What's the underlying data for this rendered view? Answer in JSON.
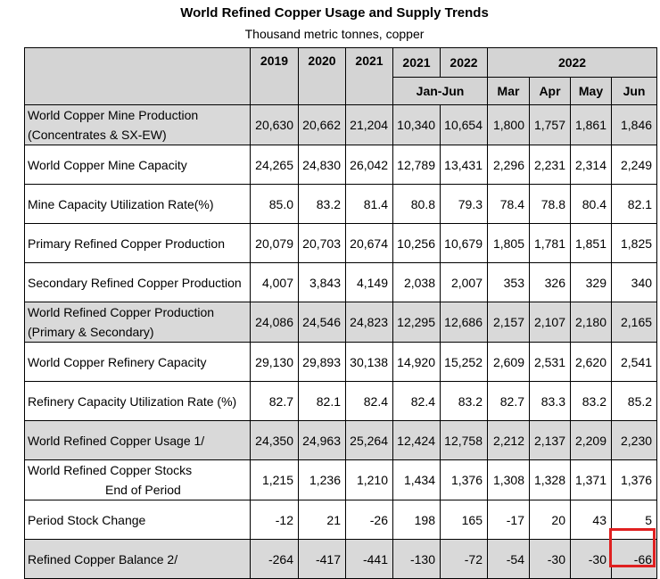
{
  "title": "World Refined Copper Usage and Supply Trends",
  "subtitle": "Thousand metric tonnes, copper",
  "header": {
    "years": [
      "2019",
      "2020",
      "2021",
      "2021",
      "2022"
    ],
    "year_2022_months": "2022",
    "jan_jun": "Jan-Jun",
    "months": [
      "Mar",
      "Apr",
      "May",
      "Jun"
    ]
  },
  "rows": [
    {
      "label": [
        "World Copper Mine Production",
        "(Concentrates & SX-EW)"
      ],
      "values": [
        "20,630",
        "20,662",
        "21,204",
        "10,340",
        "10,654",
        "1,800",
        "1,757",
        "1,861",
        "1,846"
      ],
      "shaded": true
    },
    {
      "label": [
        "World Copper Mine Capacity"
      ],
      "values": [
        "24,265",
        "24,830",
        "26,042",
        "12,789",
        "13,431",
        "2,296",
        "2,231",
        "2,314",
        "2,249"
      ],
      "shaded": false
    },
    {
      "label": [
        "Mine Capacity Utilization Rate(%)"
      ],
      "values": [
        "85.0",
        "83.2",
        "81.4",
        "80.8",
        "79.3",
        "78.4",
        "78.8",
        "80.4",
        "82.1"
      ],
      "shaded": false
    },
    {
      "label": [
        "Primary Refined Copper Production"
      ],
      "values": [
        "20,079",
        "20,703",
        "20,674",
        "10,256",
        "10,679",
        "1,805",
        "1,781",
        "1,851",
        "1,825"
      ],
      "shaded": false
    },
    {
      "label": [
        "Secondary Refined Copper Production"
      ],
      "values": [
        "4,007",
        "3,843",
        "4,149",
        "2,038",
        "2,007",
        "353",
        "326",
        "329",
        "340"
      ],
      "shaded": false
    },
    {
      "label": [
        "World Refined Copper Production",
        "(Primary & Secondary)"
      ],
      "values": [
        "24,086",
        "24,546",
        "24,823",
        "12,295",
        "12,686",
        "2,157",
        "2,107",
        "2,180",
        "2,165"
      ],
      "shaded": true
    },
    {
      "label": [
        "World Copper Refinery Capacity"
      ],
      "values": [
        "29,130",
        "29,893",
        "30,138",
        "14,920",
        "15,252",
        "2,609",
        "2,531",
        "2,620",
        "2,541"
      ],
      "shaded": false
    },
    {
      "label": [
        "Refinery Capacity Utilization Rate (%)"
      ],
      "values": [
        "82.7",
        "82.1",
        "82.4",
        "82.4",
        "83.2",
        "82.7",
        "83.3",
        "83.2",
        "85.2"
      ],
      "shaded": false
    },
    {
      "label": [
        "World Refined Copper Usage 1/"
      ],
      "values": [
        "24,350",
        "24,963",
        "25,264",
        "12,424",
        "12,758",
        "2,212",
        "2,137",
        "2,209",
        "2,230"
      ],
      "shaded": true
    },
    {
      "label": [
        "World Refined Copper Stocks",
        "End of Period"
      ],
      "values": [
        "1,215",
        "1,236",
        "1,210",
        "1,434",
        "1,376",
        "1,308",
        "1,328",
        "1,371",
        "1,376"
      ],
      "shaded": false,
      "indent_second": true
    },
    {
      "label": [
        "Period Stock Change"
      ],
      "values": [
        "-12",
        "21",
        "-26",
        "198",
        "165",
        "-17",
        "20",
        "43",
        "5"
      ],
      "shaded": false
    },
    {
      "label": [
        "Refined Copper Balance 2/"
      ],
      "values": [
        "-264",
        "-417",
        "-441",
        "-130",
        "-72",
        "-54",
        "-30",
        "-30",
        "-66"
      ],
      "shaded": true
    }
  ],
  "highlight_color": "#e02020"
}
